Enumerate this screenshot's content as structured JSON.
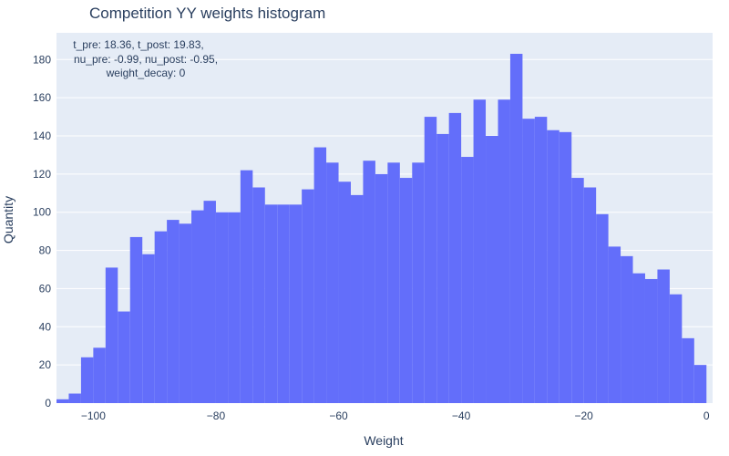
{
  "chart_data": {
    "type": "bar",
    "title": "Competition YY weights histogram",
    "xlabel": "Weight",
    "ylabel": "Quantity",
    "xlim": [
      -106,
      1
    ],
    "ylim": [
      0,
      194
    ],
    "x_ticks": [
      -100,
      -80,
      -60,
      -40,
      -20,
      0
    ],
    "y_ticks": [
      0,
      20,
      40,
      60,
      80,
      100,
      120,
      140,
      160,
      180
    ],
    "bin_start": -106,
    "bin_width": 2,
    "values": [
      2,
      5,
      24,
      29,
      71,
      48,
      87,
      78,
      90,
      96,
      94,
      101,
      106,
      100,
      100,
      122,
      113,
      104,
      104,
      104,
      112,
      134,
      126,
      116,
      109,
      127,
      120,
      126,
      118,
      126,
      150,
      141,
      152,
      129,
      159,
      140,
      159,
      183,
      149,
      150,
      143,
      142,
      118,
      113,
      99,
      82,
      77,
      68,
      65,
      70,
      57,
      34,
      20
    ],
    "annotation": [
      "t_pre: 18.36, t_post: 19.83,",
      "nu_pre: -0.99, nu_post: -0.95,",
      "weight_decay: 0"
    ],
    "colors": {
      "bar": "#636efa",
      "plot_bg": "#e5ecf6",
      "grid": "#ffffff",
      "text": "#2a3f5f"
    },
    "grid": true
  }
}
